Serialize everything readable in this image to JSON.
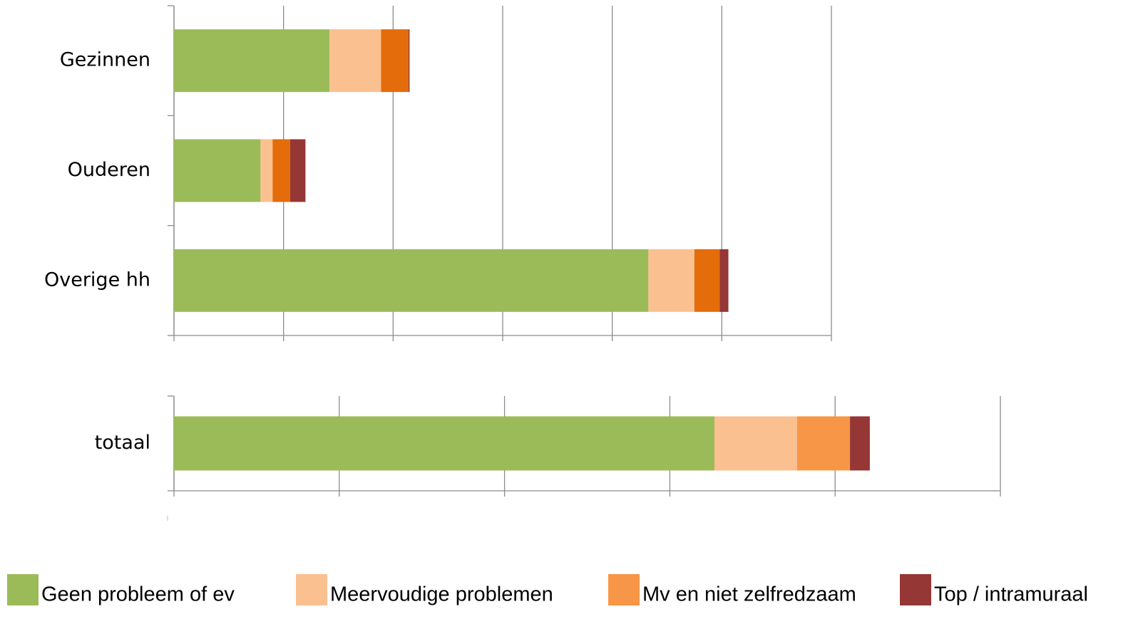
{
  "chart_data": [
    {
      "type": "bar",
      "orientation": "horizontal",
      "stacked": true,
      "categories": [
        "Gezinnen",
        "Ouderen",
        "Overige hh"
      ],
      "series": [
        {
          "name": "Geen probleem of ev",
          "color": "#9bbb59",
          "values": [
            1.42,
            0.79,
            4.33
          ]
        },
        {
          "name": "Meervoudige problemen",
          "color": "#fac090",
          "values": [
            0.47,
            0.11,
            0.42
          ]
        },
        {
          "name": "Mv en niet zelfredzaam",
          "color": "#e46c0a",
          "values": [
            0.25,
            0.16,
            0.23
          ]
        },
        {
          "name": "Top / intramuraal",
          "color": "#953735",
          "values": [
            0.01,
            0.14,
            0.08
          ]
        }
      ],
      "xlim": [
        0,
        6
      ],
      "xticks": [
        0,
        1,
        2,
        3,
        4,
        5,
        6
      ],
      "grid": true
    },
    {
      "type": "bar",
      "orientation": "horizontal",
      "stacked": true,
      "categories": [
        "totaal"
      ],
      "series": [
        {
          "name": "Geen probleem of ev",
          "color": "#9bbb59",
          "values": [
            3.27
          ]
        },
        {
          "name": "Meervoudige problemen",
          "color": "#fac090",
          "values": [
            0.5
          ]
        },
        {
          "name": "Mv en niet zelfredzaam",
          "color": "#f79646",
          "values": [
            0.32
          ]
        },
        {
          "name": "Top / intramuraal",
          "color": "#953735",
          "values": [
            0.12
          ]
        }
      ],
      "xlim": [
        0,
        5
      ],
      "xticks": [
        0,
        1,
        2,
        3,
        4,
        5
      ],
      "grid": true
    }
  ]
}
